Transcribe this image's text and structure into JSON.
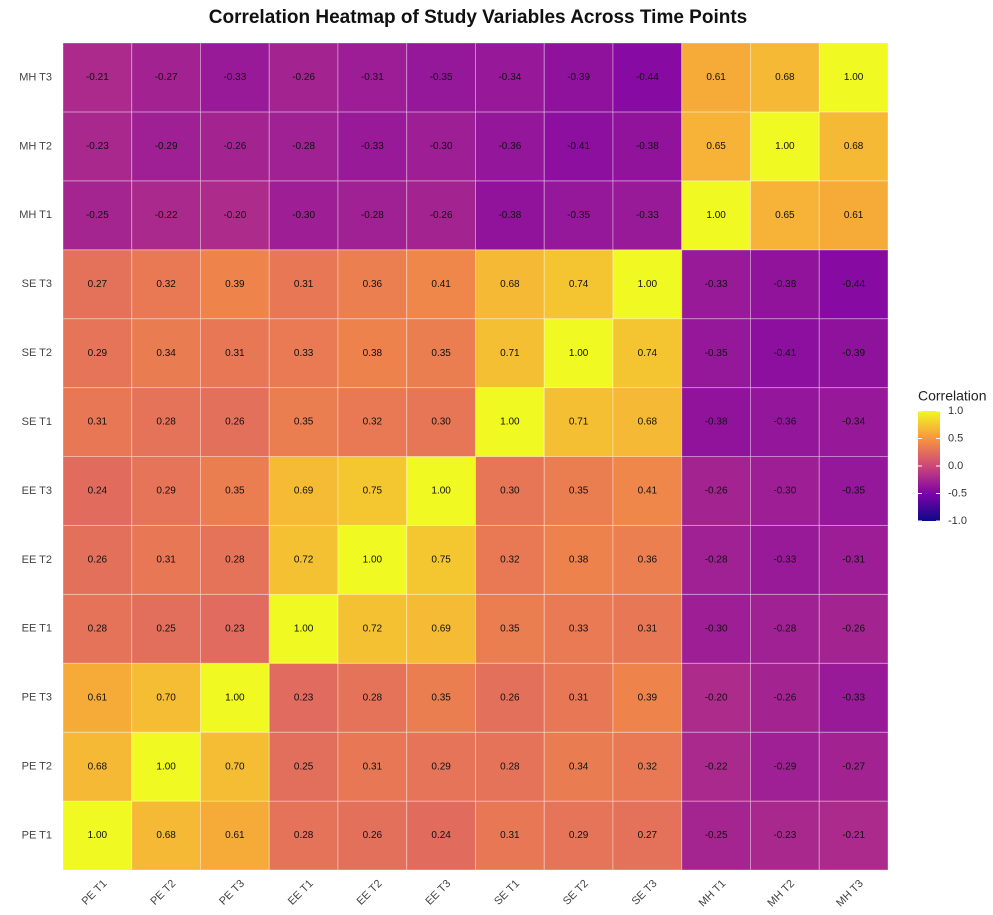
{
  "chart_data": {
    "type": "heatmap",
    "title": "Correlation Heatmap of Study Variables Across Time Points",
    "x": [
      "PE T1",
      "PE T2",
      "PE T3",
      "EE T1",
      "EE T2",
      "EE T3",
      "SE T1",
      "SE T2",
      "SE T3",
      "MH T1",
      "MH T2",
      "MH T3"
    ],
    "y": [
      "PE T1",
      "PE T2",
      "PE T3",
      "EE T1",
      "EE T2",
      "EE T3",
      "SE T1",
      "SE T2",
      "SE T3",
      "MH T1",
      "MH T2",
      "MH T3"
    ],
    "z": [
      [
        1.0,
        0.68,
        0.61,
        0.28,
        0.26,
        0.24,
        0.31,
        0.29,
        0.27,
        -0.25,
        -0.23,
        -0.21
      ],
      [
        0.68,
        1.0,
        0.7,
        0.25,
        0.31,
        0.29,
        0.28,
        0.34,
        0.32,
        -0.22,
        -0.29,
        -0.27
      ],
      [
        0.61,
        0.7,
        1.0,
        0.23,
        0.28,
        0.35,
        0.26,
        0.31,
        0.39,
        -0.2,
        -0.26,
        -0.33
      ],
      [
        0.28,
        0.25,
        0.23,
        1.0,
        0.72,
        0.69,
        0.35,
        0.33,
        0.31,
        -0.3,
        -0.28,
        -0.26
      ],
      [
        0.26,
        0.31,
        0.28,
        0.72,
        1.0,
        0.75,
        0.32,
        0.38,
        0.36,
        -0.28,
        -0.33,
        -0.31
      ],
      [
        0.24,
        0.29,
        0.35,
        0.69,
        0.75,
        1.0,
        0.3,
        0.35,
        0.41,
        -0.26,
        -0.3,
        -0.35
      ],
      [
        0.31,
        0.28,
        0.26,
        0.35,
        0.32,
        0.3,
        1.0,
        0.71,
        0.68,
        -0.38,
        -0.36,
        -0.34
      ],
      [
        0.29,
        0.34,
        0.31,
        0.33,
        0.38,
        0.35,
        0.71,
        1.0,
        0.74,
        -0.35,
        -0.41,
        -0.39
      ],
      [
        0.27,
        0.32,
        0.39,
        0.31,
        0.36,
        0.41,
        0.68,
        0.74,
        1.0,
        -0.33,
        -0.38,
        -0.44
      ],
      [
        -0.25,
        -0.22,
        -0.2,
        -0.3,
        -0.28,
        -0.26,
        -0.38,
        -0.35,
        -0.33,
        1.0,
        0.65,
        0.61
      ],
      [
        -0.23,
        -0.29,
        -0.26,
        -0.28,
        -0.33,
        -0.3,
        -0.36,
        -0.41,
        -0.38,
        0.65,
        1.0,
        0.68
      ],
      [
        -0.21,
        -0.27,
        -0.33,
        -0.26,
        -0.31,
        -0.35,
        -0.34,
        -0.39,
        -0.44,
        0.61,
        0.68,
        1.0
      ]
    ],
    "value_labels": [
      [
        "1.00",
        "0.68",
        "0.61",
        "0.28",
        "0.26",
        "0.24",
        "0.31",
        "0.29",
        "0.27",
        "-0.25",
        "-0.23",
        "-0.21"
      ],
      [
        "0.68",
        "1.00",
        "0.70",
        "0.25",
        "0.31",
        "0.29",
        "0.28",
        "0.34",
        "0.32",
        "-0.22",
        "-0.29",
        "-0.27"
      ],
      [
        "0.61",
        "0.70",
        "1.00",
        "0.23",
        "0.28",
        "0.35",
        "0.26",
        "0.31",
        "0.39",
        "-0.20",
        "-0.26",
        "-0.33"
      ],
      [
        "0.28",
        "0.25",
        "0.23",
        "1.00",
        "0.72",
        "0.69",
        "0.35",
        "0.33",
        "0.31",
        "-0.30",
        "-0.28",
        "-0.26"
      ],
      [
        "0.26",
        "0.31",
        "0.28",
        "0.72",
        "1.00",
        "0.75",
        "0.32",
        "0.38",
        "0.36",
        "-0.28",
        "-0.33",
        "-0.31"
      ],
      [
        "0.24",
        "0.29",
        "0.35",
        "0.69",
        "0.75",
        "1.00",
        "0.30",
        "0.35",
        "0.41",
        "-0.26",
        "-0.30",
        "-0.35"
      ],
      [
        "0.31",
        "0.28",
        "0.26",
        "0.35",
        "0.32",
        "0.30",
        "1.00",
        "0.71",
        "0.68",
        "-0.38",
        "-0.36",
        "-0.34"
      ],
      [
        "0.29",
        "0.34",
        "0.31",
        "0.33",
        "0.38",
        "0.35",
        "0.71",
        "1.00",
        "0.74",
        "-0.35",
        "-0.41",
        "-0.39"
      ],
      [
        "0.27",
        "0.32",
        "0.39",
        "0.31",
        "0.36",
        "0.41",
        "0.68",
        "0.74",
        "1.00",
        "-0.33",
        "-0.38",
        "-0.44"
      ],
      [
        "-0.25",
        "-0.22",
        "-0.20",
        "-0.30",
        "-0.28",
        "-0.26",
        "-0.38",
        "-0.35",
        "-0.33",
        "1.00",
        "0.65",
        "0.61"
      ],
      [
        "-0.23",
        "-0.29",
        "-0.26",
        "-0.28",
        "-0.33",
        "-0.30",
        "-0.36",
        "-0.41",
        "-0.38",
        "0.65",
        "1.00",
        "0.68"
      ],
      [
        "-0.21",
        "-0.27",
        "-0.33",
        "-0.26",
        "-0.31",
        "-0.35",
        "-0.34",
        "-0.39",
        "-0.44",
        "0.61",
        "0.68",
        "1.00"
      ]
    ],
    "colorscale": [
      "#0d0887",
      "#7e03a8",
      "#cc4778",
      "#f89540",
      "#f0f921"
    ],
    "zlim": [
      -1,
      1
    ],
    "legend_title": "Correlation",
    "zticks": [
      {
        "value": 1,
        "label": "1.0"
      },
      0.5,
      {
        "value": 0,
        "label": "0.0"
      },
      -0.5,
      {
        "value": -1,
        "label": "-1.0"
      }
    ]
  }
}
